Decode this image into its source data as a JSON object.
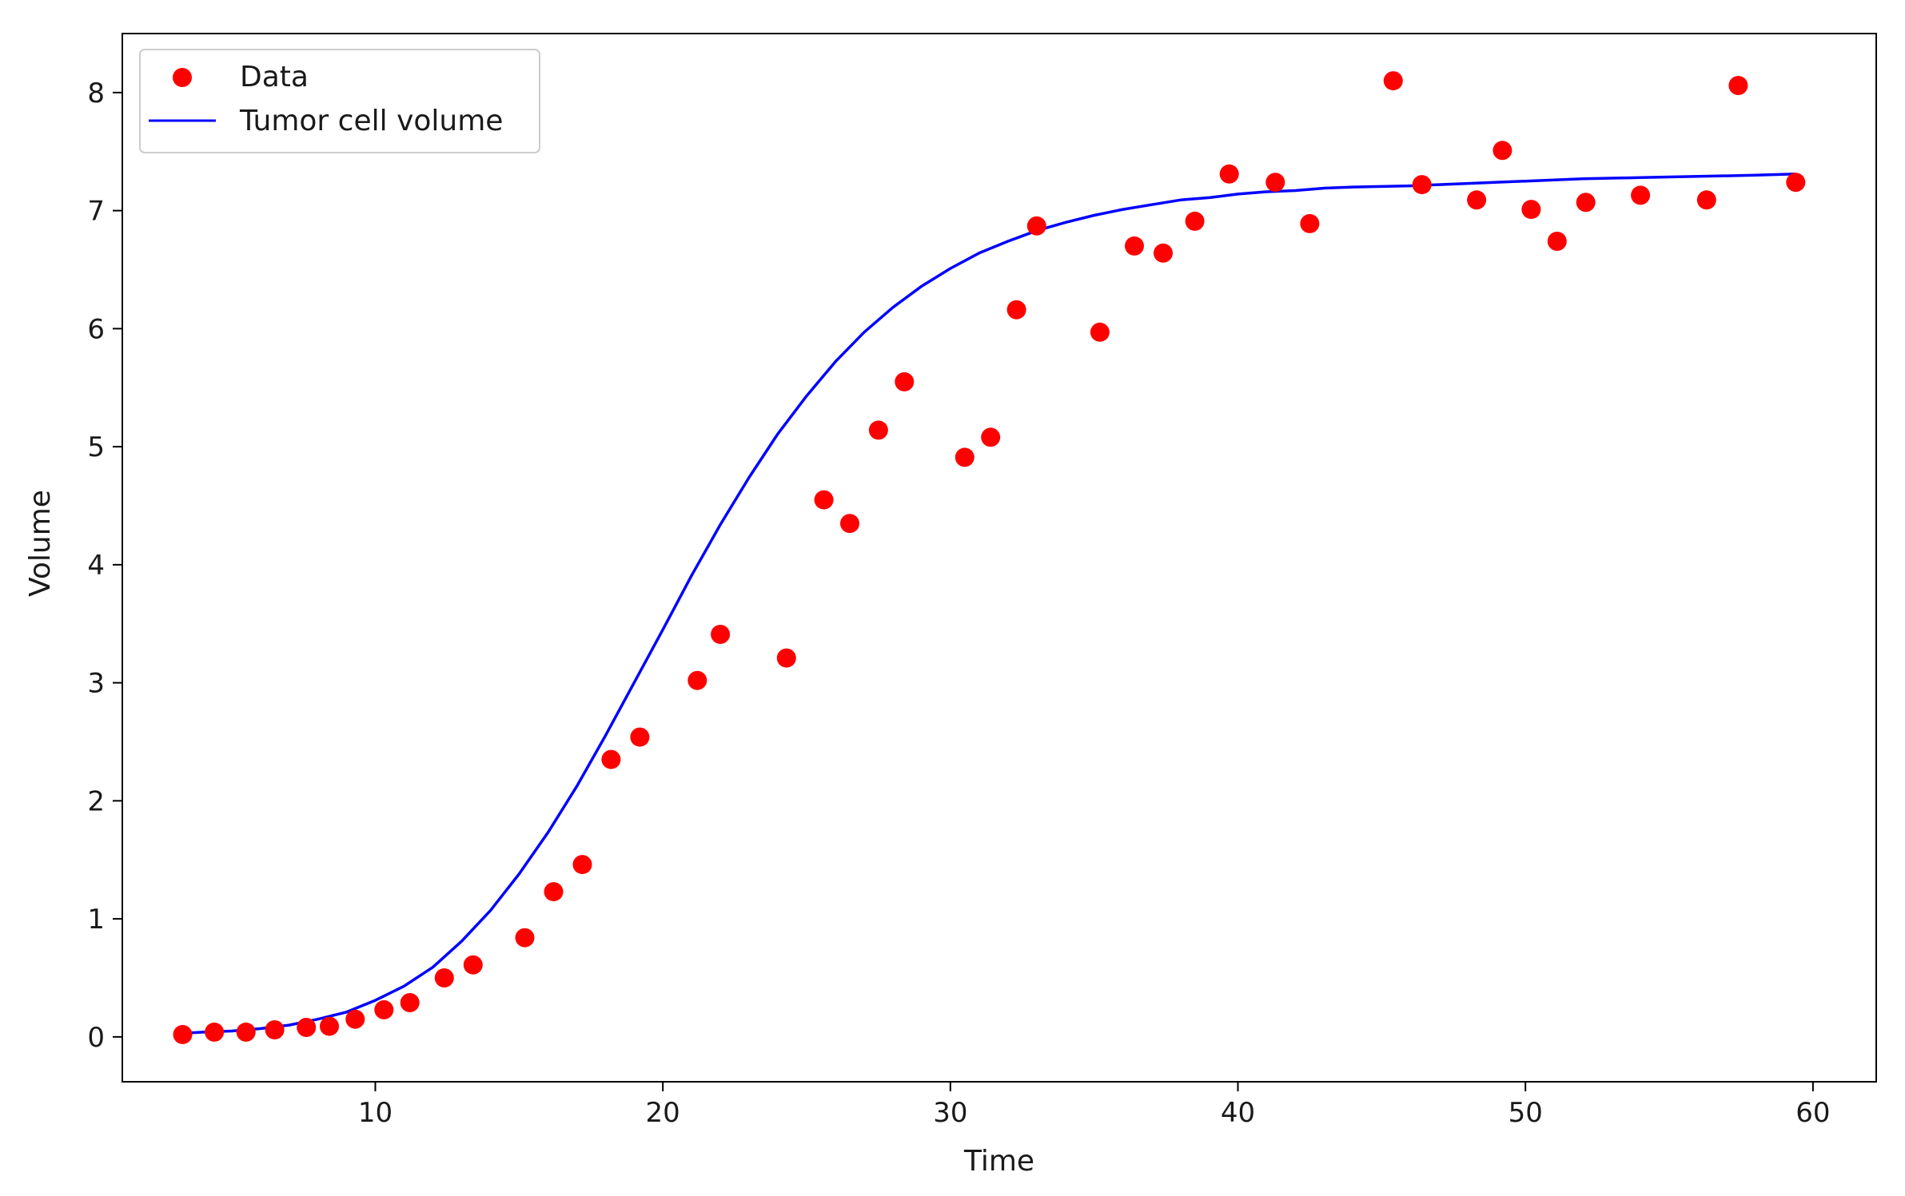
{
  "chart_data": {
    "type": "scatter",
    "xlabel": "Time",
    "ylabel": "Volume",
    "xlim": [
      1.2,
      62.2
    ],
    "ylim": [
      -0.38,
      8.5
    ],
    "x_ticks": [
      10,
      20,
      30,
      40,
      50,
      60
    ],
    "y_ticks": [
      0,
      1,
      2,
      3,
      4,
      5,
      6,
      7,
      8
    ],
    "grid": false,
    "legend_position": "upper-left",
    "series": [
      {
        "name": "Data",
        "kind": "scatter",
        "color": "#ff0000",
        "x": [
          3.3,
          4.4,
          5.5,
          6.5,
          7.6,
          8.4,
          9.3,
          10.3,
          11.2,
          12.4,
          13.4,
          15.2,
          16.2,
          17.2,
          18.2,
          19.2,
          21.2,
          22.0,
          24.3,
          25.6,
          26.5,
          27.5,
          28.4,
          30.5,
          31.4,
          32.3,
          33.0,
          35.2,
          36.4,
          37.4,
          38.5,
          39.7,
          41.3,
          42.5,
          45.4,
          46.4,
          48.3,
          49.2,
          50.2,
          51.1,
          52.1,
          54.0,
          56.3,
          57.4,
          59.4
        ],
        "y": [
          0.02,
          0.04,
          0.04,
          0.06,
          0.08,
          0.09,
          0.15,
          0.23,
          0.29,
          0.5,
          0.61,
          0.84,
          1.23,
          1.46,
          2.35,
          2.54,
          3.02,
          3.41,
          3.21,
          4.55,
          4.35,
          5.14,
          5.55,
          4.91,
          5.08,
          6.16,
          6.87,
          5.97,
          6.7,
          6.64,
          6.91,
          7.31,
          7.24,
          6.89,
          8.1,
          7.22,
          7.09,
          7.51,
          7.01,
          6.74,
          7.07,
          7.13,
          7.09,
          8.06,
          7.24
        ]
      },
      {
        "name": "Tumor cell volume",
        "kind": "line",
        "color": "#0000ff",
        "x": [
          3.3,
          4.0,
          5.0,
          6.0,
          7.0,
          8.0,
          9.0,
          10.0,
          11.0,
          12.0,
          13.0,
          14.0,
          15.0,
          16.0,
          17.0,
          18.0,
          19.0,
          20.0,
          21.0,
          22.0,
          23.0,
          24.0,
          25.0,
          26.0,
          27.0,
          28.0,
          29.0,
          30.0,
          31.0,
          32.0,
          33.0,
          34.0,
          35.0,
          36.0,
          37.0,
          38.0,
          39.0,
          40.0,
          41.0,
          42.0,
          43.0,
          44.0,
          46.0,
          48.0,
          50.0,
          52.0,
          54.0,
          56.0,
          58.0,
          59.4
        ],
        "y": [
          0.03,
          0.04,
          0.05,
          0.07,
          0.1,
          0.15,
          0.21,
          0.31,
          0.43,
          0.59,
          0.81,
          1.07,
          1.38,
          1.73,
          2.12,
          2.55,
          3.0,
          3.45,
          3.91,
          4.34,
          4.74,
          5.11,
          5.43,
          5.72,
          5.97,
          6.18,
          6.36,
          6.51,
          6.64,
          6.74,
          6.83,
          6.9,
          6.96,
          7.01,
          7.05,
          7.09,
          7.11,
          7.14,
          7.16,
          7.17,
          7.19,
          7.2,
          7.21,
          7.23,
          7.25,
          7.27,
          7.28,
          7.29,
          7.3,
          7.31
        ]
      }
    ]
  }
}
